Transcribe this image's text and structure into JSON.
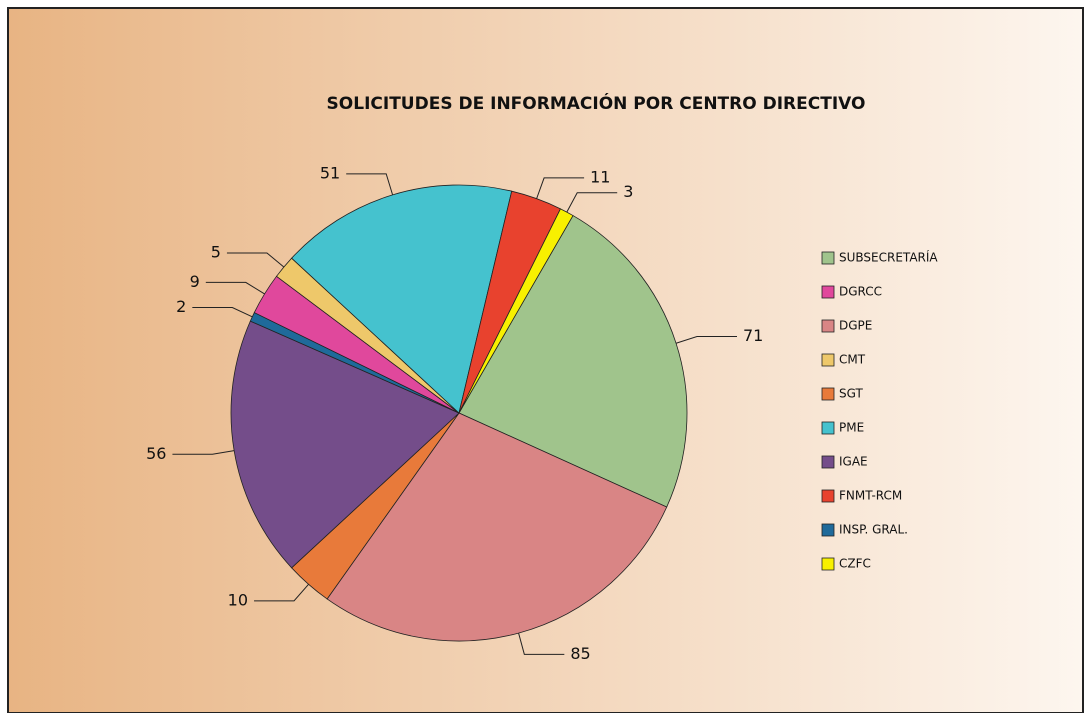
{
  "chart_data": {
    "type": "pie",
    "title": "SOLICITUDES DE INFORMACIÓN POR CENTRO DIRECTIVO",
    "categories": [
      "SUBSECRETARÍA",
      "DGRCC",
      "DGPE",
      "CMT",
      "SGT",
      "PME",
      "IGAE",
      "FNMT-RCM",
      "INSP. GRAL.",
      "CZFC"
    ],
    "values": [
      71,
      9,
      85,
      5,
      10,
      51,
      56,
      11,
      2,
      3
    ],
    "colors": [
      "#a0c48c",
      "#e0489c",
      "#d98585",
      "#eec86a",
      "#e87a3a",
      "#45c2ce",
      "#744d8a",
      "#e8422e",
      "#1f6a9a",
      "#f8f000"
    ],
    "legend": "right"
  }
}
